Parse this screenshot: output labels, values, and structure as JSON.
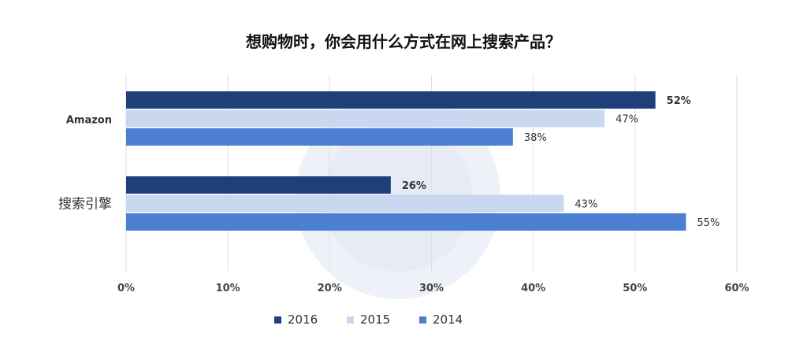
{
  "chart_data": {
    "type": "bar",
    "orientation": "horizontal",
    "title": "想购物时，你会用什么方式在网上搜索产品？",
    "categories": [
      "Amazon",
      "搜索引擎"
    ],
    "series": [
      {
        "name": "2016",
        "values": [
          52,
          26
        ],
        "color": "#1f3f7a",
        "label_bold": true
      },
      {
        "name": "2015",
        "values": [
          47,
          43
        ],
        "color": "#c9d8f0",
        "label_bold": false
      },
      {
        "name": "2014",
        "values": [
          38,
          55
        ],
        "color": "#4a7fd2",
        "label_bold": false
      }
    ],
    "value_suffix": "%",
    "xlim": [
      0,
      60
    ],
    "xticks": [
      0,
      10,
      20,
      30,
      40,
      50,
      60
    ],
    "xtick_labels": [
      "0%",
      "10%",
      "20%",
      "30%",
      "40%",
      "50%",
      "60%"
    ],
    "xlabel": "",
    "ylabel": "",
    "grid": true,
    "legend_position": "bottom"
  }
}
